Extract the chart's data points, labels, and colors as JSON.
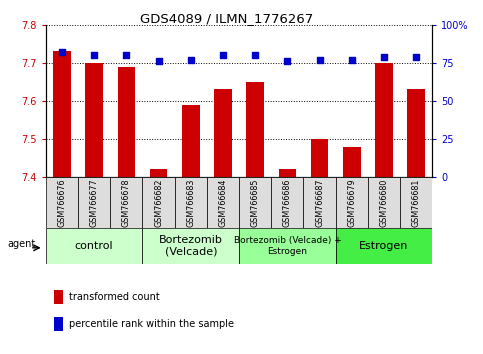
{
  "title": "GDS4089 / ILMN_1776267",
  "samples": [
    "GSM766676",
    "GSM766677",
    "GSM766678",
    "GSM766682",
    "GSM766683",
    "GSM766684",
    "GSM766685",
    "GSM766686",
    "GSM766687",
    "GSM766679",
    "GSM766680",
    "GSM766681"
  ],
  "bar_values": [
    7.73,
    7.7,
    7.69,
    7.42,
    7.59,
    7.63,
    7.65,
    7.42,
    7.5,
    7.48,
    7.7,
    7.63
  ],
  "bar_bottom": 7.4,
  "percentile_values": [
    82,
    80,
    80,
    76,
    77,
    80,
    80,
    76,
    77,
    77,
    79,
    79
  ],
  "ylim_left": [
    7.4,
    7.8
  ],
  "ylim_right": [
    0,
    100
  ],
  "yticks_left": [
    7.4,
    7.5,
    7.6,
    7.7,
    7.8
  ],
  "yticks_right": [
    0,
    25,
    50,
    75,
    100
  ],
  "ytick_labels_right": [
    "0",
    "25",
    "50",
    "75",
    "100%"
  ],
  "bar_color": "#cc0000",
  "dot_color": "#0000cc",
  "groups": [
    {
      "label": "control",
      "start": 0,
      "end": 3,
      "color": "#ccffcc",
      "fontsize": 8
    },
    {
      "label": "Bortezomib\n(Velcade)",
      "start": 3,
      "end": 6,
      "color": "#ccffcc",
      "fontsize": 8
    },
    {
      "label": "Bortezomib (Velcade) +\nEstrogen",
      "start": 6,
      "end": 9,
      "color": "#99ff99",
      "fontsize": 6.5
    },
    {
      "label": "Estrogen",
      "start": 9,
      "end": 12,
      "color": "#44ee44",
      "fontsize": 8
    }
  ],
  "agent_label": "agent",
  "legend_bar_label": "transformed count",
  "legend_dot_label": "percentile rank within the sample",
  "bar_color_legend": "#cc0000",
  "dot_color_legend": "#0000cc"
}
